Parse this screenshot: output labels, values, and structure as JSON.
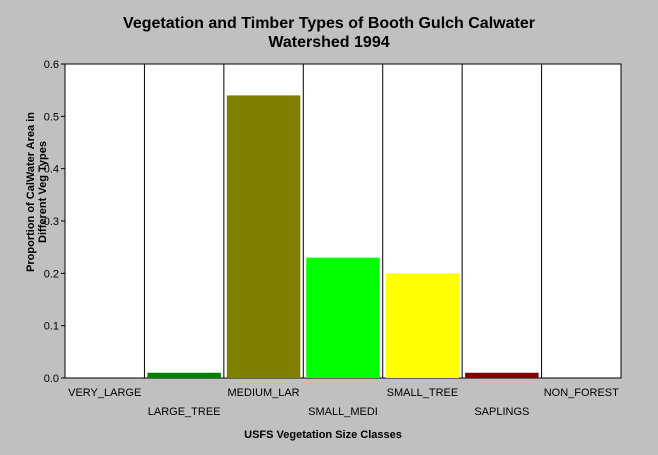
{
  "chart_data": {
    "type": "bar",
    "title_line1": "Vegetation and Timber Types of Booth Gulch Calwater",
    "title_line2": "Watershed 1994",
    "xlabel": "USFS Vegetation Size Classes",
    "ylabel_line1": "Proportion of CalWater Area in",
    "ylabel_line2": "Different Veg Types",
    "categories": [
      "VERY_LARGE",
      "LARGE_TREE",
      "MEDIUM_LAR",
      "SMALL_MEDI",
      "SMALL_TREE",
      "SAPLINGS",
      "NON_FOREST"
    ],
    "values": [
      0,
      0.01,
      0.54,
      0.23,
      0.2,
      0.01,
      0
    ],
    "colors": [
      "#008000",
      "#008000",
      "#808000",
      "#00ff00",
      "#ffff00",
      "#800000",
      "#808080"
    ],
    "yticks": [
      "0.0",
      "0.1",
      "0.2",
      "0.3",
      "0.4",
      "0.5",
      "0.6"
    ],
    "ylim": [
      0,
      0.6
    ],
    "grid": "vertical"
  }
}
